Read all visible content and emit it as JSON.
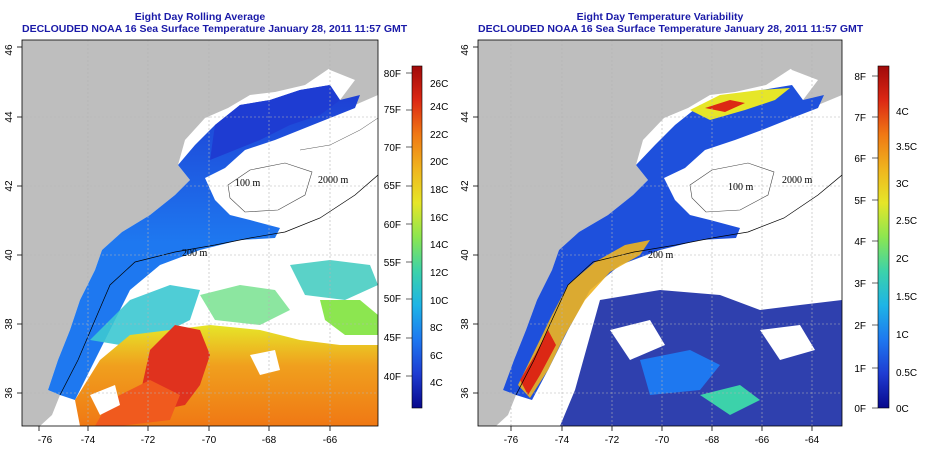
{
  "panels": [
    {
      "title_line1": "Eight Day Rolling Average",
      "title_line2": "DECLOUDED NOAA 16 Sea Surface Temperature January 28, 2011 11:57 GMT",
      "colorbar_f": [
        "40F",
        "45F",
        "50F",
        "55F",
        "60F",
        "65F",
        "70F",
        "75F",
        "80F"
      ],
      "colorbar_c": [
        "4C",
        "6C",
        "8C",
        "10C",
        "12C",
        "14C",
        "16C",
        "18C",
        "20C",
        "22C",
        "24C",
        "26C"
      ]
    },
    {
      "title_line1": "Eight Day Temperature Variability",
      "title_line2": "DECLOUDED NOAA 16 Sea Surface Temperature January 28, 2011 11:57 GMT",
      "colorbar_f": [
        "0F",
        "1F",
        "2F",
        "3F",
        "4F",
        "5F",
        "6F",
        "7F",
        "8F"
      ],
      "colorbar_c": [
        "0C",
        "0.5C",
        "1C",
        "1.5C",
        "2C",
        "2.5C",
        "3C",
        "3.5C",
        "4C"
      ]
    }
  ],
  "axes": {
    "lon_ticks": [
      "-76",
      "-74",
      "-72",
      "-70",
      "-68",
      "-66",
      "-64"
    ],
    "lat_ticks": [
      "36",
      "38",
      "40",
      "42",
      "44",
      "46"
    ]
  },
  "contours": {
    "label_100": "100 m",
    "label_200": "200 m",
    "label_2000": "2000 m"
  },
  "colors": {
    "land": "#bebebe",
    "title": "#1a1aa8",
    "colorbar": [
      "#08088c",
      "#1e3cd2",
      "#1e78f0",
      "#1eb4e6",
      "#3cd2aa",
      "#8ce650",
      "#e6e628",
      "#f0b41e",
      "#f07814",
      "#dc2814",
      "#a00a0a"
    ]
  }
}
